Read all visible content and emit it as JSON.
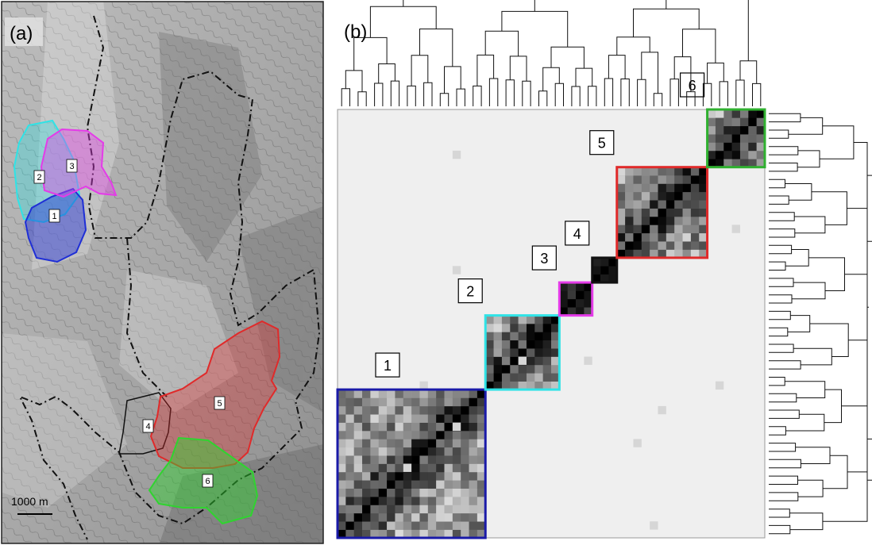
{
  "panels": {
    "a": {
      "label": "(a)",
      "scale_bar_text": "1000 m",
      "zones": [
        {
          "id": "1",
          "color": "#1f2fd6"
        },
        {
          "id": "2",
          "color": "#2fe3e6"
        },
        {
          "id": "3",
          "color": "#e43be8"
        },
        {
          "id": "4",
          "color": "#111111"
        },
        {
          "id": "5",
          "color": "#e02a2a"
        },
        {
          "id": "6",
          "color": "#2fd42f"
        }
      ]
    },
    "b": {
      "label": "(b)"
    }
  },
  "chart_data": {
    "type": "heatmap",
    "description_elements": [
      "similarity matrix",
      "top dendrogram",
      "right dendrogram"
    ],
    "clusters": [
      {
        "label": "1",
        "color": "#1a1aa8",
        "size": 18
      },
      {
        "label": "2",
        "color": "#2fe3e6",
        "size": 9
      },
      {
        "label": "3",
        "color": "#e43be8",
        "size": 4
      },
      {
        "label": "4",
        "color": "#111111",
        "size": 3
      },
      {
        "label": "5",
        "color": "#e02a2a",
        "size": 11
      },
      {
        "label": "6",
        "color": "#2fb02f",
        "size": 7
      }
    ]
  }
}
